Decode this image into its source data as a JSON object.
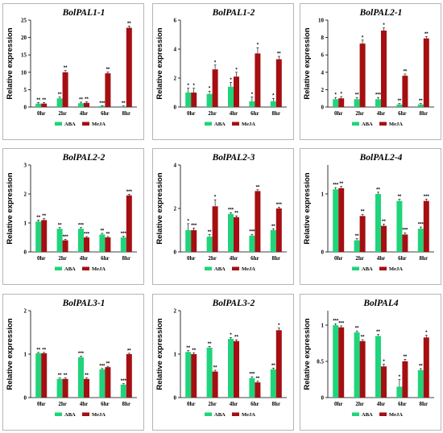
{
  "chart_data": [
    {
      "type": "bar",
      "title": "BolPAL1-1",
      "ylabel": "Relative expression",
      "ylim": [
        0,
        25
      ],
      "yticks": [
        "0",
        "5",
        "10",
        "15",
        "20",
        "25"
      ],
      "categories": [
        "0hr",
        "2hr",
        "4hr",
        "6hr",
        "8hr"
      ],
      "series": [
        {
          "name": "ABA",
          "values": [
            1.0,
            2.5,
            1.1,
            0.3,
            0.2
          ],
          "errors": [
            0.3,
            0.4,
            0.3,
            0.1,
            0.1
          ],
          "labels": [
            "**",
            "**",
            "**",
            "***",
            "**"
          ]
        },
        {
          "name": "MeJA",
          "values": [
            1.0,
            10.0,
            1.2,
            9.7,
            22.8
          ],
          "errors": [
            0.3,
            0.5,
            0.3,
            0.4,
            0.5
          ],
          "labels": [
            "**",
            "**",
            "**",
            "**",
            "**"
          ]
        }
      ]
    },
    {
      "type": "bar",
      "title": "BolPAL1-2",
      "ylabel": "Relative expression",
      "ylim": [
        0,
        6
      ],
      "yticks": [
        "0",
        "2",
        "4",
        "6"
      ],
      "categories": [
        "0hr",
        "2hr",
        "4hr",
        "6hr",
        "8hr"
      ],
      "series": [
        {
          "name": "ABA",
          "values": [
            1.0,
            0.9,
            1.4,
            0.4,
            0.4
          ],
          "errors": [
            0.3,
            0.2,
            0.3,
            0.3,
            0.2
          ],
          "labels": [
            "*",
            "*",
            "*",
            "*",
            "*"
          ]
        },
        {
          "name": "MeJA",
          "values": [
            1.0,
            2.6,
            2.1,
            3.7,
            3.3
          ],
          "errors": [
            0.3,
            0.3,
            0.3,
            0.4,
            0.2
          ],
          "labels": [
            "*",
            "*",
            "*",
            "*",
            "**"
          ]
        }
      ]
    },
    {
      "type": "bar",
      "title": "BolPAL2-1",
      "ylabel": "Relative expression",
      "ylim": [
        0,
        10
      ],
      "yticks": [
        "0",
        "2",
        "4",
        "6",
        "8",
        "10"
      ],
      "categories": [
        "0hr",
        "2hr",
        "4hr",
        "6hr",
        "8hr"
      ],
      "series": [
        {
          "name": "ABA",
          "values": [
            0.9,
            0.9,
            0.9,
            0.3,
            0.3
          ],
          "errors": [
            0.2,
            0.2,
            0.2,
            0.1,
            0.1
          ],
          "labels": [
            "*",
            "**",
            "***",
            "**",
            "**"
          ]
        },
        {
          "name": "MeJA",
          "values": [
            1.0,
            7.3,
            8.8,
            3.6,
            7.9
          ],
          "errors": [
            0.2,
            0.4,
            0.3,
            0.2,
            0.2
          ],
          "labels": [
            "*",
            "*",
            "*",
            "**",
            "**"
          ]
        }
      ]
    },
    {
      "type": "bar",
      "title": "BolPAL2-2",
      "ylabel": "Relative expression",
      "ylim": [
        0,
        3
      ],
      "yticks": [
        "0",
        "1",
        "2",
        "3"
      ],
      "categories": [
        "0hr",
        "2hr",
        "4hr",
        "6hr",
        "8hr"
      ],
      "series": [
        {
          "name": "ABA",
          "values": [
            1.05,
            0.8,
            0.8,
            0.6,
            0.5
          ],
          "errors": [
            0.05,
            0.04,
            0.04,
            0.04,
            0.04
          ],
          "labels": [
            "**",
            "**",
            "***",
            "**",
            "***"
          ]
        },
        {
          "name": "MeJA",
          "values": [
            1.1,
            0.4,
            0.5,
            0.5,
            1.95
          ],
          "errors": [
            0.05,
            0.03,
            0.03,
            0.03,
            0.04
          ],
          "labels": [
            "**",
            "***",
            "***",
            "**",
            "***"
          ]
        }
      ]
    },
    {
      "type": "bar",
      "title": "BolPAL2-3",
      "ylabel": "Relative expression",
      "ylim": [
        0,
        4
      ],
      "yticks": [
        "0",
        "2",
        "4"
      ],
      "categories": [
        "0hr",
        "2hr",
        "4hr",
        "6hr",
        "8hr"
      ],
      "series": [
        {
          "name": "ABA",
          "values": [
            1.0,
            0.7,
            1.75,
            0.75,
            1.0
          ],
          "errors": [
            0.3,
            0.1,
            0.06,
            0.06,
            0.06
          ],
          "labels": [
            "*",
            "**",
            "***",
            "***",
            "**"
          ]
        },
        {
          "name": "MeJA",
          "values": [
            1.0,
            2.1,
            1.6,
            2.8,
            2.0
          ],
          "errors": [
            0.1,
            0.3,
            0.06,
            0.06,
            0.06
          ],
          "labels": [
            "***",
            "*",
            "**",
            "**",
            "***"
          ]
        }
      ]
    },
    {
      "type": "bar",
      "title": "BolPAL2-4",
      "ylabel": "Relative expression",
      "ylim": [
        0,
        1.5
      ],
      "yticks": [
        "0",
        "1"
      ],
      "categories": [
        "0hr",
        "2hr",
        "4hr",
        "6hr",
        "8hr"
      ],
      "series": [
        {
          "name": "ABA",
          "values": [
            1.08,
            0.2,
            1.0,
            0.88,
            0.4
          ],
          "errors": [
            0.03,
            0.03,
            0.03,
            0.03,
            0.03
          ],
          "labels": [
            "***",
            "**",
            "**",
            "**",
            "***"
          ]
        },
        {
          "name": "MeJA",
          "values": [
            1.1,
            0.62,
            0.45,
            0.3,
            0.88
          ],
          "errors": [
            0.03,
            0.03,
            0.03,
            0.03,
            0.03
          ],
          "labels": [
            "**",
            "**",
            "**",
            "***",
            "***"
          ]
        }
      ]
    },
    {
      "type": "bar",
      "title": "BolPAL3-1",
      "ylabel": "Relative expression",
      "ylim": [
        0,
        2
      ],
      "yticks": [
        "0",
        "1",
        "2"
      ],
      "categories": [
        "0hr",
        "2hr",
        "4hr",
        "6hr",
        "8hr"
      ],
      "series": [
        {
          "name": "ABA",
          "values": [
            1.02,
            0.43,
            0.93,
            0.65,
            0.3
          ],
          "errors": [
            0.02,
            0.02,
            0.02,
            0.02,
            0.02
          ],
          "labels": [
            "**",
            "**",
            "***",
            "***",
            "***"
          ]
        },
        {
          "name": "MeJA",
          "values": [
            1.02,
            0.43,
            0.43,
            0.7,
            1.0
          ],
          "errors": [
            0.02,
            0.02,
            0.02,
            0.02,
            0.02
          ],
          "labels": [
            "**",
            "**",
            "**",
            "**",
            "**"
          ]
        }
      ]
    },
    {
      "type": "bar",
      "title": "BolPAL3-2",
      "ylabel": "Relative expression",
      "ylim": [
        0,
        2
      ],
      "yticks": [
        "0",
        "1",
        "2"
      ],
      "categories": [
        "0hr",
        "2hr",
        "4hr",
        "6hr",
        "8hr"
      ],
      "series": [
        {
          "name": "ABA",
          "values": [
            1.05,
            1.15,
            1.35,
            0.45,
            0.65
          ],
          "errors": [
            0.03,
            0.03,
            0.03,
            0.03,
            0.03
          ],
          "labels": [
            "**",
            "**",
            "*",
            "***",
            "**"
          ]
        },
        {
          "name": "MeJA",
          "values": [
            1.0,
            0.6,
            1.3,
            0.35,
            1.55
          ],
          "errors": [
            0.03,
            0.03,
            0.03,
            0.03,
            0.05
          ],
          "labels": [
            "**",
            "**",
            "**",
            "**",
            "*"
          ]
        }
      ]
    },
    {
      "type": "bar",
      "title": "BolPAL4",
      "ylabel": "Relative expression",
      "ylim": [
        0,
        1.2
      ],
      "yticks": [
        "0",
        "0.5",
        "1"
      ],
      "categories": [
        "0hr",
        "2hr",
        "4hr",
        "6hr",
        "8hr"
      ],
      "series": [
        {
          "name": "ABA",
          "values": [
            1.0,
            0.9,
            0.85,
            0.15,
            0.38
          ],
          "errors": [
            0.02,
            0.02,
            0.02,
            0.1,
            0.02
          ],
          "labels": [
            "***",
            "**",
            "**",
            "*",
            "**"
          ]
        },
        {
          "name": "MeJA",
          "values": [
            0.97,
            0.78,
            0.43,
            0.5,
            0.83
          ],
          "errors": [
            0.02,
            0.02,
            0.03,
            0.03,
            0.03
          ],
          "labels": [
            "***",
            "**",
            "*",
            "**",
            "*"
          ]
        }
      ]
    }
  ],
  "colors": {
    "ABA": "#1fd47a",
    "MeJA": "#a50f12"
  }
}
